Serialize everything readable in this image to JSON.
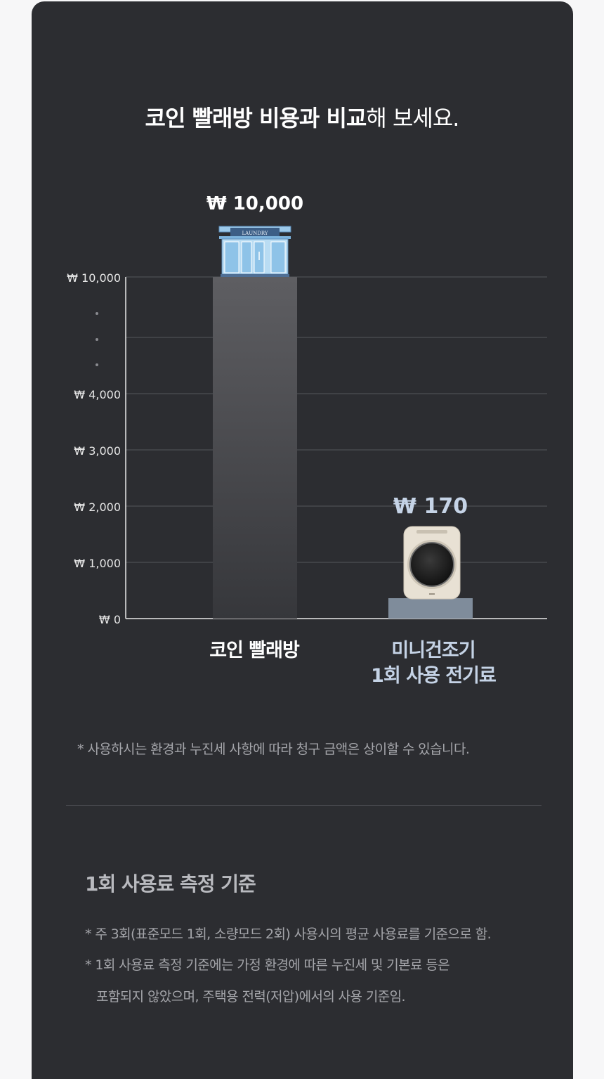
{
  "title_bold": "코인 빨래방 비용과 비교",
  "title_light": "해 보세요.",
  "chart_data": {
    "type": "bar",
    "categories": [
      "코인 빨래방",
      "미니건조기\n1회 사용 전기료"
    ],
    "values": [
      10000,
      170
    ],
    "data_labels": [
      "₩ 10,000",
      "₩ 170"
    ],
    "y_ticks": [
      {
        "label": "₩ 10,000",
        "value": 10000
      },
      {
        "label": "₩ 4,000",
        "value": 4000
      },
      {
        "label": "₩ 3,000",
        "value": 3000
      },
      {
        "label": "₩ 2,000",
        "value": 2000
      },
      {
        "label": "₩ 1,000",
        "value": 1000
      },
      {
        "label": "₩ 0",
        "value": 0
      }
    ],
    "axis_break": true,
    "grid": true,
    "colors": {
      "coin_bar": "#5a5a5e",
      "dryer_bar": "#7f8c9b",
      "coin_label": "#ffffff",
      "dryer_label": "#c5d3e6"
    }
  },
  "x_labels": {
    "coin": "코인 빨래방",
    "dryer_line1": "미니건조기",
    "dryer_line2": "1회 사용 전기료"
  },
  "laundry_sign": "LAUNDRY",
  "disclaimer": "* 사용하시는 환경과 누진세 사항에 따라 청구 금액은 상이할 수 있습니다.",
  "criteria": {
    "heading": "1회 사용료 측정 기준",
    "line1": "* 주 3회(표준모드 1회, 소량모드 2회) 사용시의 평균 사용료를 기준으로 함.",
    "line2": "* 1회 사용료 측정 기준에는 가정 환경에 따른 누진세 및 기본료 등은",
    "line3": "포함되지 않았으며, 주택용 전력(저압)에서의 사용 기준임."
  }
}
